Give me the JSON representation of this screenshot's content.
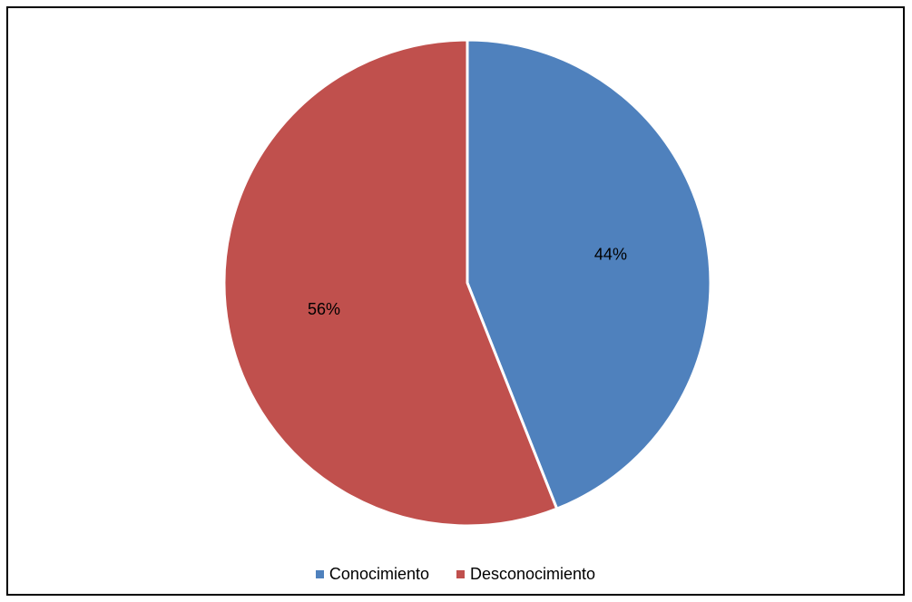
{
  "chart_data": {
    "type": "pie",
    "title": "",
    "categories": [
      "Conocimiento",
      "Desconocimiento"
    ],
    "values": [
      44,
      56
    ],
    "labels": [
      "44%",
      "56%"
    ],
    "colors": [
      "#4F81BD",
      "#C0504D"
    ],
    "slice_border_color": "#FFFFFF",
    "start_angle_deg": 0,
    "direction": "clockwise",
    "legend_position": "bottom"
  }
}
